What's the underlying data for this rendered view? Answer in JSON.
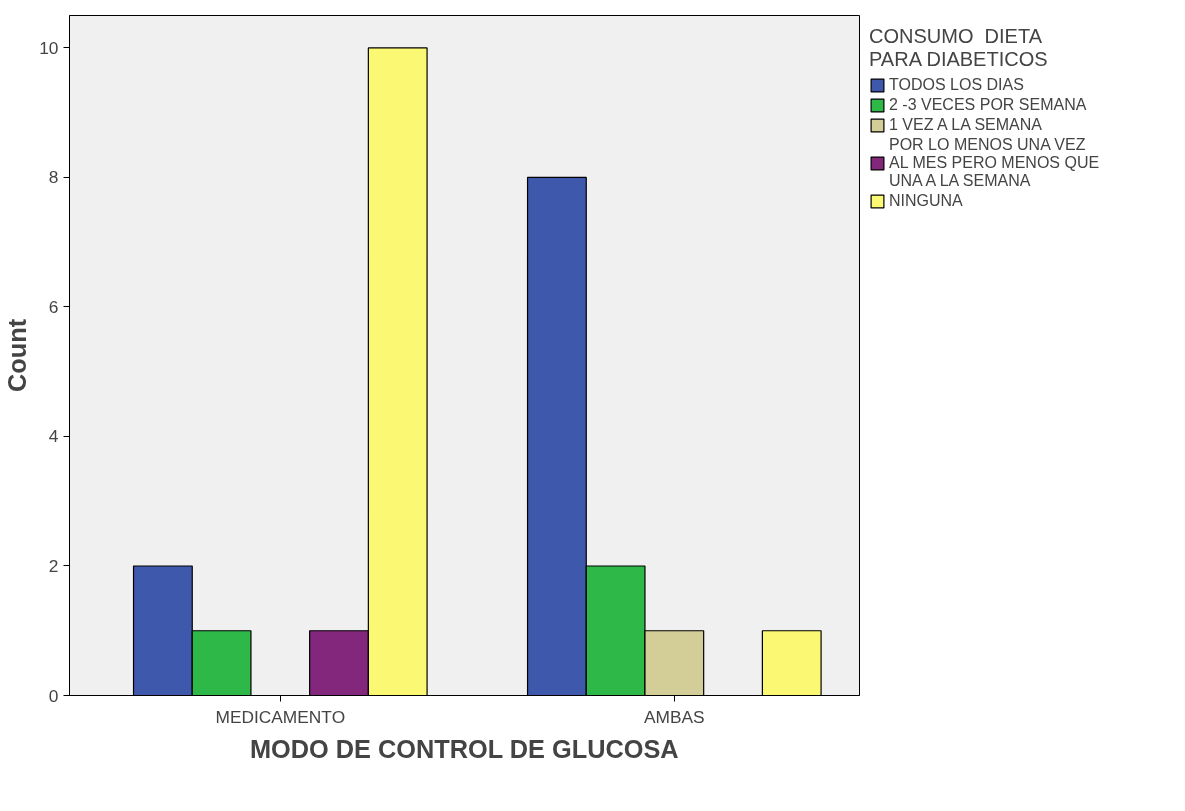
{
  "chart_data": {
    "type": "bar",
    "xlabel": "MODO DE CONTROL DE GLUCOSA",
    "ylabel": "Count",
    "categories": [
      "MEDICAMENTO",
      "AMBAS"
    ],
    "legend_title": "CONSUMO  DIETA\nPARA DIABETICOS",
    "legend": "right",
    "grid": false,
    "ylim": [
      0,
      10.5
    ],
    "yticks": [
      0,
      2,
      4,
      6,
      8,
      10
    ],
    "series": [
      {
        "name": "TODOS LOS DIAS",
        "color": "#3e58ac",
        "values": [
          2,
          8
        ]
      },
      {
        "name": "2 -3 VECES POR SEMANA",
        "color": "#2eb848",
        "values": [
          1,
          2
        ]
      },
      {
        "name": "1 VEZ A LA SEMANA",
        "color": "#d3ce97",
        "values": [
          null,
          1
        ]
      },
      {
        "name": "POR LO MENOS UNA VEZ\nAL MES PERO MENOS QUE\nUNA A LA SEMANA",
        "color": "#82277b",
        "values": [
          1,
          null
        ]
      },
      {
        "name": "NINGUNA",
        "color": "#fbf873",
        "values": [
          10,
          1
        ]
      }
    ]
  }
}
